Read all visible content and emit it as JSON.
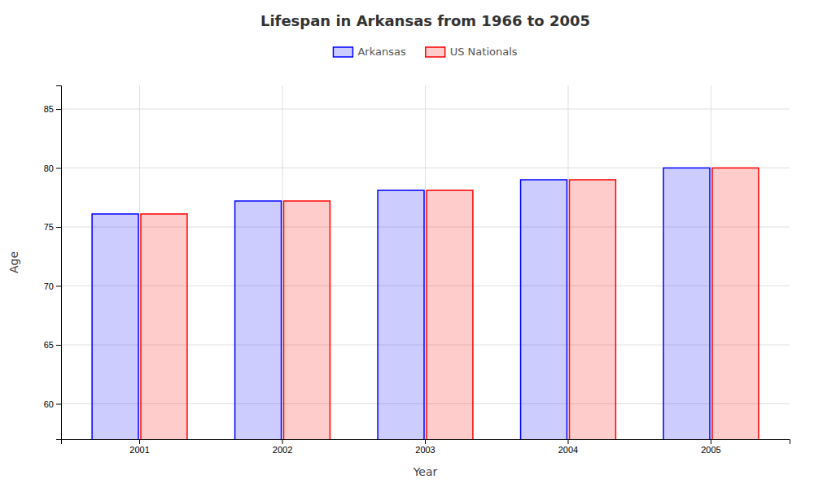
{
  "chart_data": {
    "type": "bar",
    "title": "Lifespan in Arkansas from 1966 to 2005",
    "xlabel": "Year",
    "ylabel": "Age",
    "categories": [
      "2001",
      "2002",
      "2003",
      "2004",
      "2005"
    ],
    "series": [
      {
        "name": "Arkansas",
        "color": "#0000ff",
        "values": [
          76.1,
          77.2,
          78.1,
          79.0,
          80.0
        ]
      },
      {
        "name": "US Nationals",
        "color": "#ff0000",
        "values": [
          76.1,
          77.2,
          78.1,
          79.0,
          80.0
        ]
      }
    ],
    "ylim": [
      57,
      87
    ],
    "yticks": [
      60,
      65,
      70,
      75,
      80,
      85
    ],
    "grid": true,
    "legend": "top"
  }
}
